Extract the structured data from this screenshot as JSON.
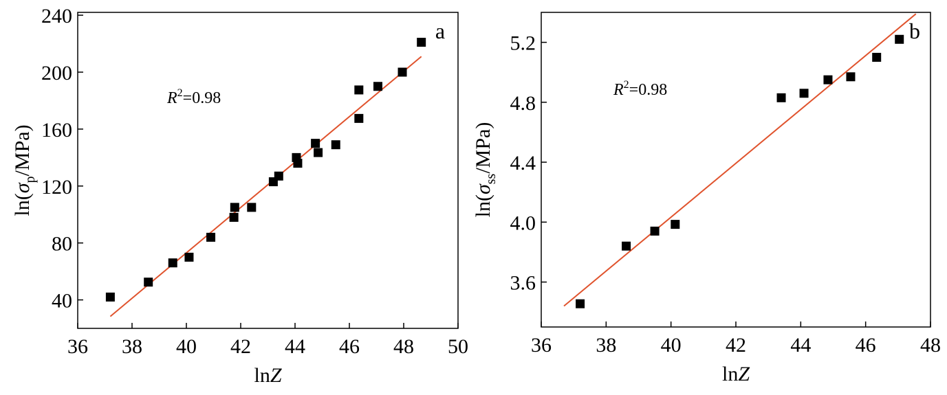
{
  "chart_data": [
    {
      "type": "scatter",
      "panel_label": "a",
      "xlabel": "lnZ",
      "ylabel": "ln(σp/MPa)",
      "ylabel_parts": {
        "prefix": "ln(",
        "symbol": "σ",
        "subscript": "p",
        "suffix": "/MPa)"
      },
      "annotation": {
        "text_R": "R",
        "text_sup": "2",
        "text_val": "=0.98"
      },
      "xlim": [
        36,
        50
      ],
      "ylim": [
        20,
        242
      ],
      "xticks": [
        36,
        38,
        40,
        42,
        44,
        46,
        48,
        50
      ],
      "yticks": [
        40,
        80,
        120,
        160,
        200,
        240
      ],
      "grid": false,
      "marker_color": "#000000",
      "fit_color": "#e0532d",
      "points": {
        "x": [
          37.2,
          38.6,
          39.5,
          40.1,
          40.9,
          41.75,
          41.78,
          42.4,
          43.2,
          43.4,
          44.05,
          44.1,
          44.75,
          44.85,
          45.5,
          46.35,
          46.35,
          47.05,
          47.95,
          48.65
        ],
        "y": [
          42,
          52.5,
          66,
          70,
          84,
          98,
          105,
          105,
          123,
          127,
          140,
          136,
          150,
          143.5,
          149,
          187.5,
          167.5,
          190,
          200,
          221
        ]
      },
      "fit": {
        "x": [
          37.2,
          48.65
        ],
        "y": [
          28.4,
          211
        ]
      }
    },
    {
      "type": "scatter",
      "panel_label": "b",
      "xlabel": "lnZ",
      "ylabel": "ln(σss/MPa)",
      "ylabel_parts": {
        "prefix": "ln(",
        "symbol": "σ",
        "subscript": "ss",
        "suffix": "/MPa)"
      },
      "annotation": {
        "text_R": "R",
        "text_sup": "2",
        "text_val": "=0.98"
      },
      "xlim": [
        36,
        48
      ],
      "ylim": [
        3.3,
        5.4
      ],
      "xticks": [
        36,
        38,
        40,
        42,
        44,
        46,
        48
      ],
      "yticks": [
        3.6,
        4.0,
        4.4,
        4.8,
        5.2
      ],
      "grid": false,
      "marker_color": "#000000",
      "fit_color": "#e0532d",
      "points": {
        "x": [
          37.2,
          38.62,
          39.5,
          40.13,
          43.4,
          44.1,
          44.84,
          45.54,
          46.34,
          47.04
        ],
        "y": [
          3.455,
          3.84,
          3.94,
          3.985,
          4.83,
          4.86,
          4.95,
          4.97,
          5.1,
          5.22
        ]
      },
      "fit": {
        "x": [
          36.7,
          47.55
        ],
        "y": [
          3.44,
          5.39
        ]
      }
    }
  ]
}
